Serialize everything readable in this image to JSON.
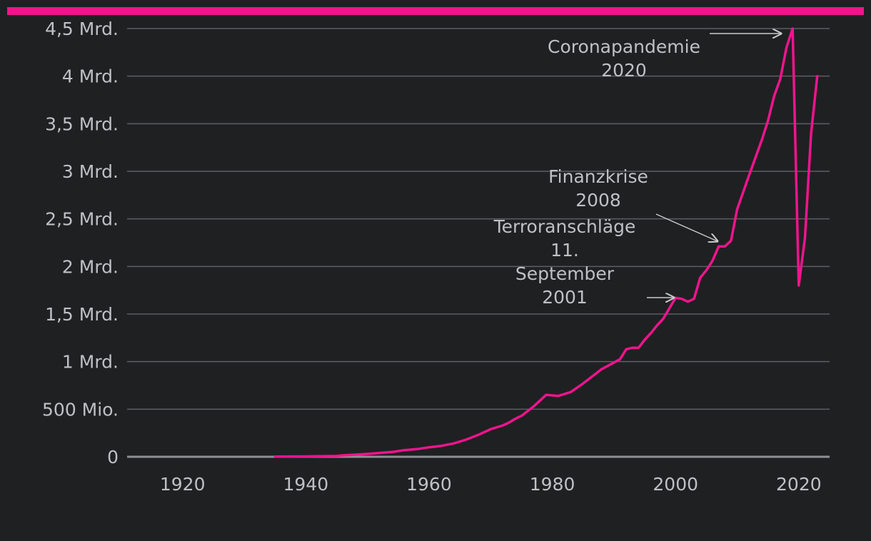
{
  "chart_data": {
    "type": "line",
    "title": "",
    "xlabel": "",
    "ylabel": "",
    "colors": {
      "background": "#1f2022",
      "accent": "#f0148c",
      "text": "#bfc0c3",
      "grid": "#5c5e62"
    },
    "xlim": [
      1911,
      2025
    ],
    "ylim": [
      0,
      4.5
    ],
    "x_ticks": [
      1920,
      1940,
      1960,
      1980,
      2000,
      2020
    ],
    "y_ticks": [
      {
        "value": 0,
        "label": "0"
      },
      {
        "value": 0.5,
        "label": "500 Mio."
      },
      {
        "value": 1,
        "label": "1 Mrd."
      },
      {
        "value": 1.5,
        "label": "1,5 Mrd."
      },
      {
        "value": 2,
        "label": "2 Mrd."
      },
      {
        "value": 2.5,
        "label": "2,5 Mrd."
      },
      {
        "value": 3,
        "label": "3 Mrd."
      },
      {
        "value": 3.5,
        "label": "3,5 Mrd."
      },
      {
        "value": 4,
        "label": "4 Mrd."
      },
      {
        "value": 4.5,
        "label": "4,5 Mrd."
      }
    ],
    "grid": true,
    "legend": "none",
    "series": [
      {
        "color": "#f0148c",
        "x": [
          1935,
          1940,
          1945,
          1946,
          1950,
          1954,
          1956,
          1958,
          1960,
          1962,
          1964,
          1966,
          1968,
          1970,
          1972,
          1973,
          1974,
          1975,
          1977,
          1979,
          1981,
          1982,
          1983,
          1985,
          1987,
          1988,
          1990,
          1991,
          1992,
          1993,
          1994,
          1995,
          1996,
          1997,
          1998,
          2000,
          2001,
          2002,
          2003,
          2004,
          2005,
          2006,
          2007,
          2008,
          2009,
          2010,
          2012,
          2014,
          2015,
          2016,
          2017,
          2018,
          2019,
          2020,
          2021,
          2022,
          2023
        ],
        "values": [
          0.002,
          0.004,
          0.008,
          0.015,
          0.03,
          0.05,
          0.07,
          0.08,
          0.1,
          0.115,
          0.14,
          0.18,
          0.23,
          0.29,
          0.33,
          0.36,
          0.4,
          0.43,
          0.53,
          0.65,
          0.64,
          0.66,
          0.68,
          0.77,
          0.87,
          0.92,
          0.99,
          1.025,
          1.13,
          1.145,
          1.145,
          1.23,
          1.3,
          1.38,
          1.45,
          1.67,
          1.66,
          1.63,
          1.66,
          1.88,
          1.96,
          2.06,
          2.21,
          2.21,
          2.27,
          2.6,
          2.97,
          3.33,
          3.53,
          3.79,
          3.97,
          4.3,
          4.5,
          1.8,
          2.3,
          3.4,
          4.0
        ]
      }
    ],
    "annotations": [
      {
        "lines": [
          "Coronapandemie",
          "2020"
        ],
        "x": 2019,
        "y": 4.5
      },
      {
        "lines": [
          "Finanzkrise",
          "2008"
        ],
        "x": 2008,
        "y": 2.25
      },
      {
        "lines": [
          "Terroranschläge",
          "11.",
          "September",
          "2001"
        ],
        "x": 2001,
        "y": 1.67
      }
    ]
  }
}
